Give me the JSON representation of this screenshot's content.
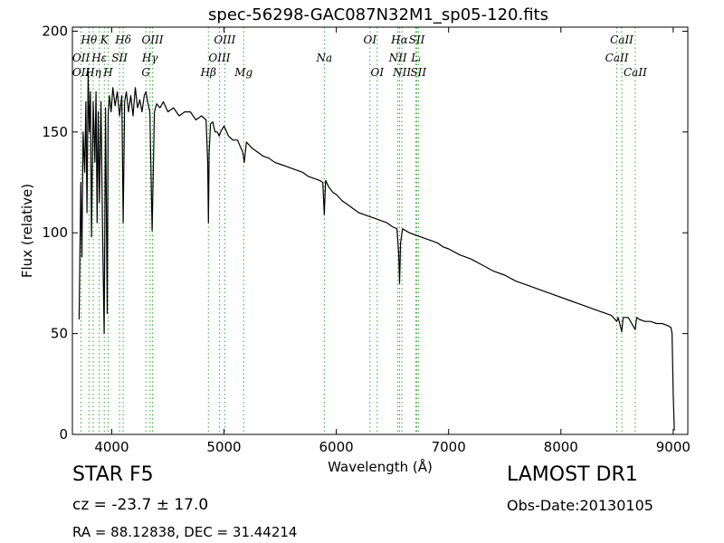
{
  "chart_data": {
    "type": "line",
    "title": "spec-56298-GAC087N32M1_sp05-120.fits",
    "xlabel": "Wavelength (Å)",
    "ylabel": "Flux (relative)",
    "xlim": [
      3650,
      9130
    ],
    "ylim": [
      0,
      202
    ],
    "xticks": [
      4000,
      5000,
      6000,
      7000,
      8000,
      9000
    ],
    "yticks": [
      0,
      50,
      100,
      150,
      200
    ],
    "grid": false,
    "line_color": "#000000",
    "marker_color": "#33aa33",
    "series": [
      {
        "x": [
          3710,
          3725,
          3735,
          3745,
          3760,
          3770,
          3780,
          3790,
          3800,
          3810,
          3820,
          3835,
          3850,
          3860,
          3870,
          3880,
          3890,
          3905,
          3920,
          3933,
          3945,
          3960,
          3968,
          3980,
          3995,
          4010,
          4030,
          4050,
          4070,
          4090,
          4102,
          4115,
          4130,
          4150,
          4170,
          4190,
          4210,
          4230,
          4250,
          4270,
          4290,
          4305,
          4320,
          4340,
          4360,
          4380,
          4400,
          4430,
          4460,
          4500,
          4550,
          4600,
          4650,
          4700,
          4750,
          4800,
          4840,
          4855,
          4861,
          4868,
          4880,
          4900,
          4920,
          4940,
          4957,
          4970,
          5000,
          5040,
          5080,
          5120,
          5167,
          5180,
          5200,
          5250,
          5300,
          5350,
          5400,
          5450,
          5500,
          5550,
          5600,
          5650,
          5700,
          5750,
          5800,
          5850,
          5880,
          5893,
          5905,
          5930,
          5970,
          6000,
          6050,
          6100,
          6150,
          6200,
          6250,
          6300,
          6350,
          6400,
          6450,
          6500,
          6540,
          6555,
          6563,
          6572,
          6590,
          6620,
          6650,
          6700,
          6750,
          6800,
          6850,
          6900,
          6950,
          7000,
          7100,
          7200,
          7300,
          7400,
          7500,
          7600,
          7700,
          7800,
          7900,
          8000,
          8100,
          8200,
          8300,
          8400,
          8450,
          8498,
          8510,
          8542,
          8555,
          8600,
          8662,
          8675,
          8700,
          8750,
          8800,
          8850,
          8900,
          8950,
          8980,
          8990,
          9000,
          9010
        ],
        "y": [
          57,
          125,
          88,
          150,
          130,
          165,
          110,
          180,
          150,
          170,
          98,
          165,
          135,
          170,
          105,
          160,
          115,
          165,
          95,
          50,
          162,
          60,
          158,
          168,
          160,
          172,
          163,
          170,
          158,
          168,
          105,
          165,
          170,
          160,
          168,
          158,
          172,
          162,
          166,
          160,
          168,
          170,
          165,
          160,
          101,
          160,
          164,
          162,
          165,
          160,
          162,
          158,
          160,
          160,
          156,
          158,
          156,
          135,
          105,
          140,
          154,
          155,
          150,
          150,
          148,
          150,
          153,
          148,
          146,
          146,
          140,
          135,
          145,
          142,
          140,
          138,
          137,
          135,
          134,
          133,
          132,
          131,
          130,
          128,
          127,
          126,
          125,
          109,
          126,
          123,
          120,
          119,
          116,
          114,
          112,
          110,
          109,
          108,
          107,
          106,
          105,
          103,
          102,
          90,
          75,
          95,
          102,
          101,
          100,
          99,
          98,
          97,
          96,
          95,
          93,
          92,
          89,
          87,
          84,
          81,
          79,
          76,
          74,
          72,
          70,
          68,
          66,
          64,
          62,
          60,
          59,
          56,
          58,
          51,
          58,
          58,
          52,
          58,
          57,
          56,
          56,
          55,
          55,
          54,
          53,
          50,
          20,
          2
        ]
      }
    ],
    "annotations": [
      {
        "label": "Hθ",
        "x": 3798,
        "row": 0
      },
      {
        "label": "OII",
        "x": 3727,
        "row": 1
      },
      {
        "label": "OII",
        "x": 3727,
        "row": 2
      },
      {
        "label": "Hη",
        "x": 3835,
        "row": 2
      },
      {
        "label": "Hε",
        "x": 3889,
        "row": 1
      },
      {
        "label": "K",
        "x": 3934,
        "row": 0
      },
      {
        "label": "SII",
        "x": 4070,
        "row": 1
      },
      {
        "label": "H",
        "x": 3968,
        "row": 2
      },
      {
        "label": "Hδ",
        "x": 4102,
        "row": 0
      },
      {
        "label": "OIII",
        "x": 4363,
        "row": 0
      },
      {
        "label": "Hγ",
        "x": 4341,
        "row": 1
      },
      {
        "label": "G",
        "x": 4304,
        "row": 2
      },
      {
        "label": "OIII",
        "x": 5007,
        "row": 0
      },
      {
        "label": "OIII",
        "x": 4959,
        "row": 1
      },
      {
        "label": "Hβ",
        "x": 4861,
        "row": 2
      },
      {
        "label": "Mg",
        "x": 5175,
        "row": 2
      },
      {
        "label": "Na",
        "x": 5893,
        "row": 1
      },
      {
        "label": "OI",
        "x": 6300,
        "row": 0
      },
      {
        "label": "OI",
        "x": 6364,
        "row": 2
      },
      {
        "label": "Hα",
        "x": 6563,
        "row": 0
      },
      {
        "label": "SII",
        "x": 6717,
        "row": 0
      },
      {
        "label": "NII",
        "x": 6548,
        "row": 1
      },
      {
        "label": "Lᵢ",
        "x": 6708,
        "row": 1
      },
      {
        "label": "NII",
        "x": 6584,
        "row": 2
      },
      {
        "label": "SII",
        "x": 6731,
        "row": 2
      },
      {
        "label": "CaII",
        "x": 8542,
        "row": 0
      },
      {
        "label": "CaII",
        "x": 8498,
        "row": 1
      },
      {
        "label": "CaII",
        "x": 8662,
        "row": 2
      }
    ]
  },
  "info": {
    "star_type": "STAR   F5",
    "cz": "cz = -23.7  ± 17.0",
    "radec": "RA = 88.12838, DEC = 31.44214",
    "survey": "LAMOST DR1",
    "obs_date": "Obs-Date:20130105"
  }
}
